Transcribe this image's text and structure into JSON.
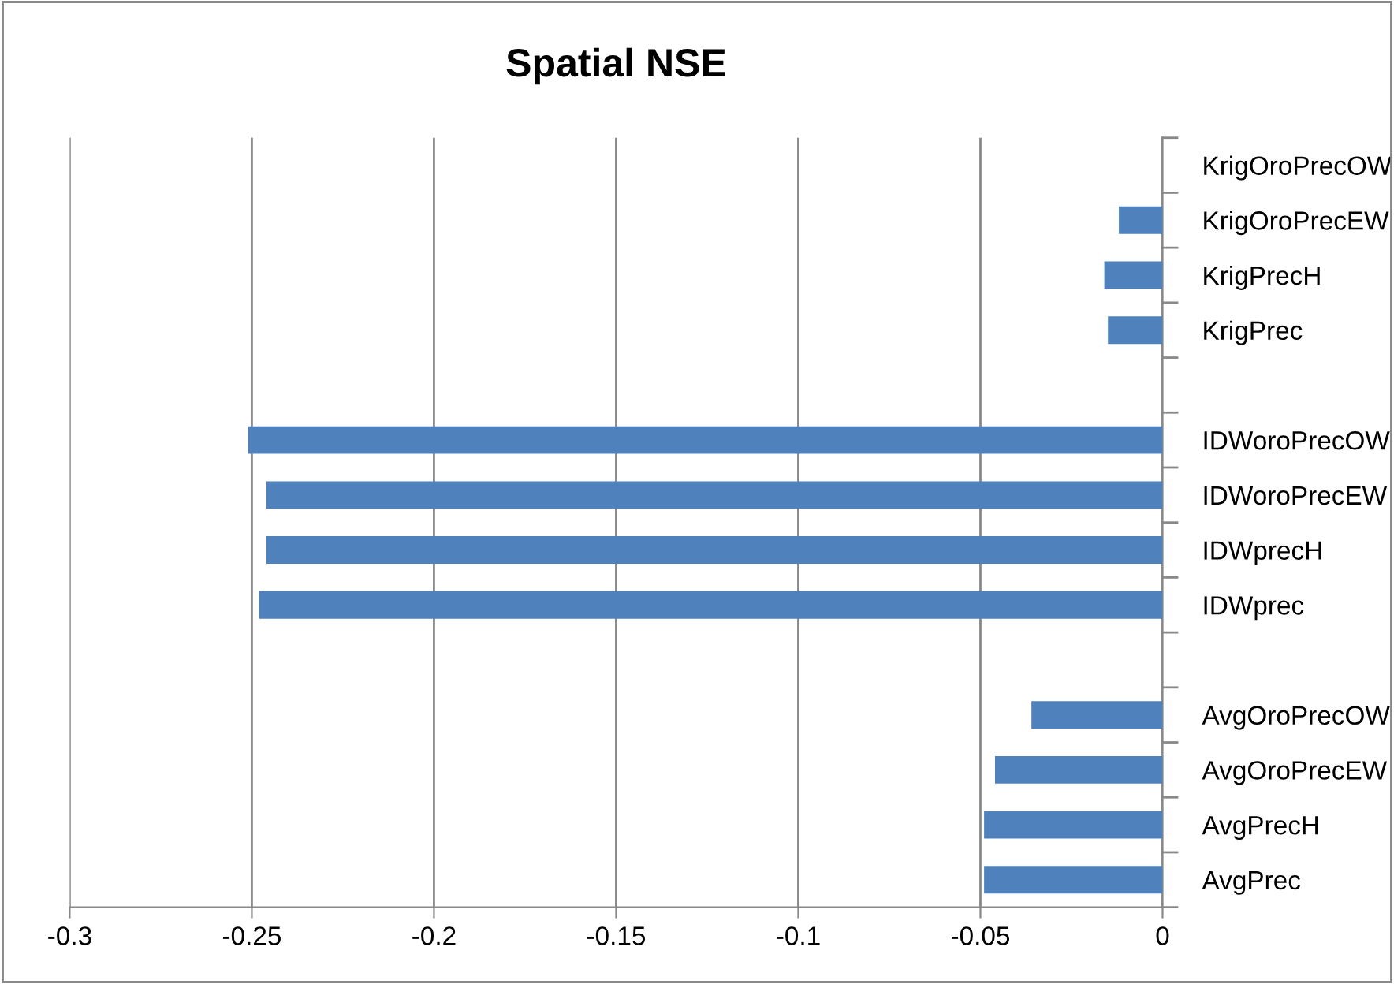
{
  "chart_data": {
    "type": "bar",
    "orientation": "horizontal",
    "title": "Spatial NSE",
    "categories": [
      "KrigOroPrecOW",
      "KrigOroPrecEW",
      "KrigPrecH",
      "KrigPrec",
      null,
      "IDWoroPrecOW",
      "IDWoroPrecEW",
      "IDWprecH",
      "IDWprec",
      null,
      "AvgOroPrecOW",
      "AvgOroPrecEW",
      "AvgPrecH",
      "AvgPrec"
    ],
    "values": [
      0,
      -0.012,
      -0.016,
      -0.015,
      null,
      -0.251,
      -0.246,
      -0.246,
      -0.248,
      null,
      -0.036,
      -0.046,
      -0.049,
      -0.049
    ],
    "color": "#4f81bd",
    "xlim": [
      -0.3,
      0
    ],
    "xticks": [
      -0.3,
      -0.25,
      -0.2,
      -0.15,
      -0.1,
      -0.05,
      0
    ],
    "grid": "x",
    "legend": false
  }
}
